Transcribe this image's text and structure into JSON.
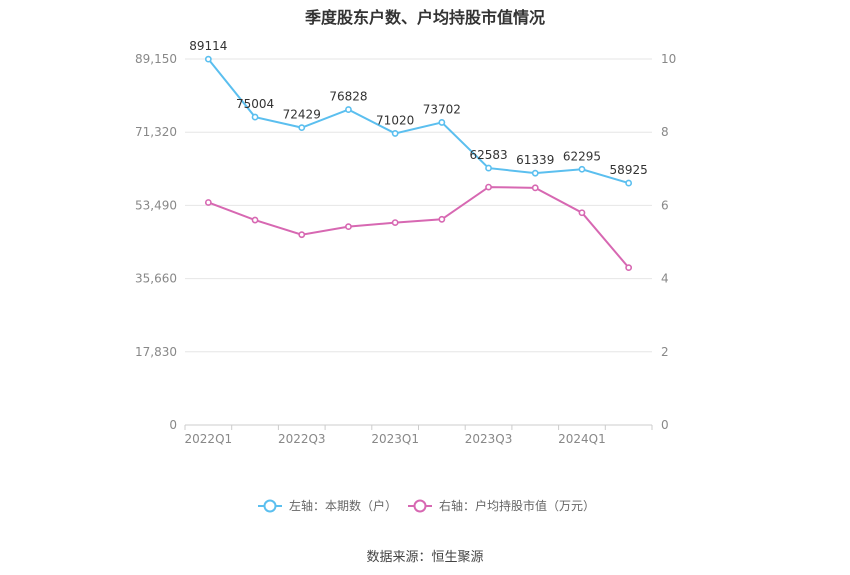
{
  "title": "季度股东户数、户均持股市值情况",
  "source": "数据来源：恒生聚源",
  "colors": {
    "left_series": "#5bbfef",
    "right_series": "#d768b2",
    "grid": "#e6e6e6",
    "axis": "#cccccc"
  },
  "chart_data": {
    "type": "line",
    "x": [
      "2022Q1",
      "2022Q2",
      "2022Q3",
      "2022Q4",
      "2023Q1",
      "2023Q2",
      "2023Q3",
      "2023Q4",
      "2024Q1",
      "2024Q2"
    ],
    "x_tick_labels": [
      "2022Q1",
      "2022Q3",
      "2023Q1",
      "2023Q3",
      "2024Q1"
    ],
    "left_axis": {
      "ylim": [
        0,
        89150
      ],
      "ticks": [
        "0",
        "17,830",
        "35,660",
        "53,490",
        "71,320",
        "89,150"
      ]
    },
    "right_axis": {
      "ylim": [
        0,
        10
      ],
      "ticks": [
        "0",
        "2",
        "4",
        "6",
        "8",
        "10"
      ]
    },
    "grid": true,
    "legend_position": "bottom",
    "series": [
      {
        "name": "左轴：本期数（户）",
        "axis": "left",
        "values": [
          89114,
          75004,
          72429,
          76828,
          71020,
          73702,
          62583,
          61339,
          62295,
          58925
        ],
        "labels": [
          "89114",
          "75004",
          "72429",
          "76828",
          "71020",
          "73702",
          "62583",
          "61339",
          "62295",
          "58925"
        ]
      },
      {
        "name": "右轴：户均持股市值（万元）",
        "axis": "right",
        "values": [
          6.08,
          5.6,
          5.2,
          5.42,
          5.53,
          5.62,
          6.5,
          6.48,
          5.8,
          4.3
        ]
      }
    ]
  }
}
